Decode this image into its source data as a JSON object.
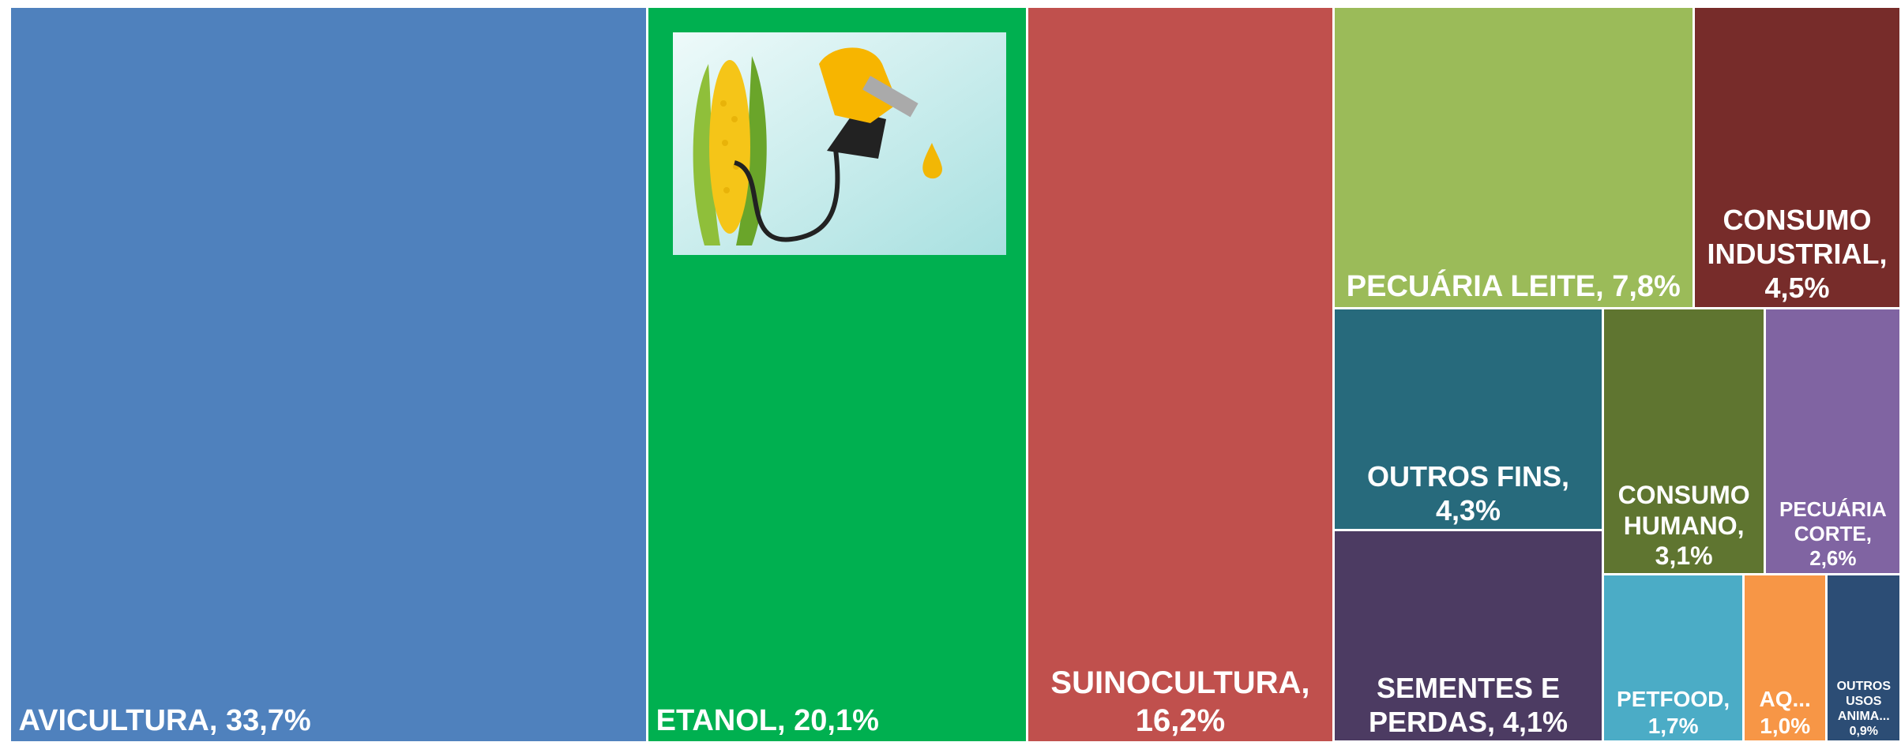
{
  "chart_data": {
    "type": "treemap",
    "labels": [
      "AVICULTURA, 33,7%",
      "ETANOL, 20,1%",
      "SUINOCULTURA, 16,2%",
      "PECUÁRIA LEITE, 7,8%",
      "CONSUMO INDUSTRIAL, 4,5%",
      "OUTROS FINS, 4,3%",
      "SEMENTES E PERDAS, 4,1%",
      "CONSUMO HUMANO, 3,1%",
      "PECUÁRIA CORTE, 2,6%",
      "PETFOOD, 1,7%",
      "AQ... 1,0%",
      "OUTROS USOS ANIMA... 0,9%"
    ],
    "values": [
      33.7,
      20.1,
      16.2,
      7.8,
      4.5,
      4.3,
      4.1,
      3.1,
      2.6,
      1.7,
      1.0,
      0.9
    ],
    "colors": [
      "#4f81bd",
      "#00b050",
      "#c0504d",
      "#9bbb59",
      "#772c2a",
      "#276a7c",
      "#4c3b62",
      "#5f7530",
      "#8064a2",
      "#4bacc6",
      "#f79646",
      "#2c4d75"
    ]
  }
}
